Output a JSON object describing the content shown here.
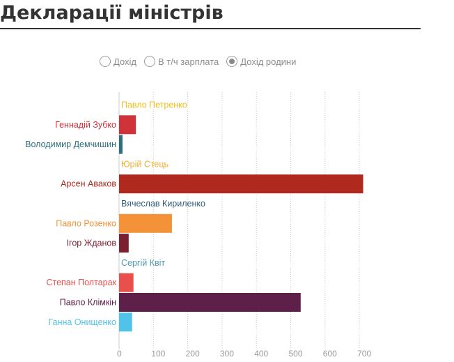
{
  "page": {
    "title": "Декларації міністрів"
  },
  "filters": [
    {
      "label": "Дохід",
      "selected": false
    },
    {
      "label": "В т/ч зарплата",
      "selected": false
    },
    {
      "label": "Дохід родини",
      "selected": true
    }
  ],
  "chart_data": {
    "type": "bar",
    "orientation": "horizontal",
    "title": "",
    "xlabel": "",
    "ylabel": "",
    "xlim": [
      0,
      700
    ],
    "xticks": [
      0,
      100,
      200,
      300,
      400,
      500,
      600,
      700
    ],
    "grid": "vertical dotted",
    "categories": [
      {
        "name": "Павло Петренко",
        "value": 0,
        "color": "#f0c020",
        "label_position": "inside"
      },
      {
        "name": "Геннадій Зубко",
        "value": 49,
        "color": "#d0323a",
        "label_position": "left"
      },
      {
        "name": "Володимир Демчишин",
        "value": 10,
        "color": "#2f6e80",
        "label_position": "left"
      },
      {
        "name": "Юрій Стець",
        "value": 0,
        "color": "#f0b030",
        "label_position": "inside"
      },
      {
        "name": "Арсен Аваков",
        "value": 711,
        "color": "#b0291f",
        "label_position": "left"
      },
      {
        "name": "Вячеслав Кириленко",
        "value": 0,
        "color": "#2f5e7a",
        "label_position": "inside"
      },
      {
        "name": "Павло Розенко",
        "value": 154,
        "color": "#f39238",
        "label_position": "left"
      },
      {
        "name": "Ігор Жданов",
        "value": 28,
        "color": "#7a2030",
        "label_position": "left"
      },
      {
        "name": "Сергій Квіт",
        "value": 0,
        "color": "#4f9bb0",
        "label_position": "inside"
      },
      {
        "name": "Степан Полтарак",
        "value": 42,
        "color": "#e9504b",
        "label_position": "left"
      },
      {
        "name": "Павло Клімкін",
        "value": 529,
        "color": "#5e2048",
        "label_position": "left"
      },
      {
        "name": "Ганна Онищенко",
        "value": 38,
        "color": "#52c3e8",
        "label_position": "left"
      }
    ]
  }
}
